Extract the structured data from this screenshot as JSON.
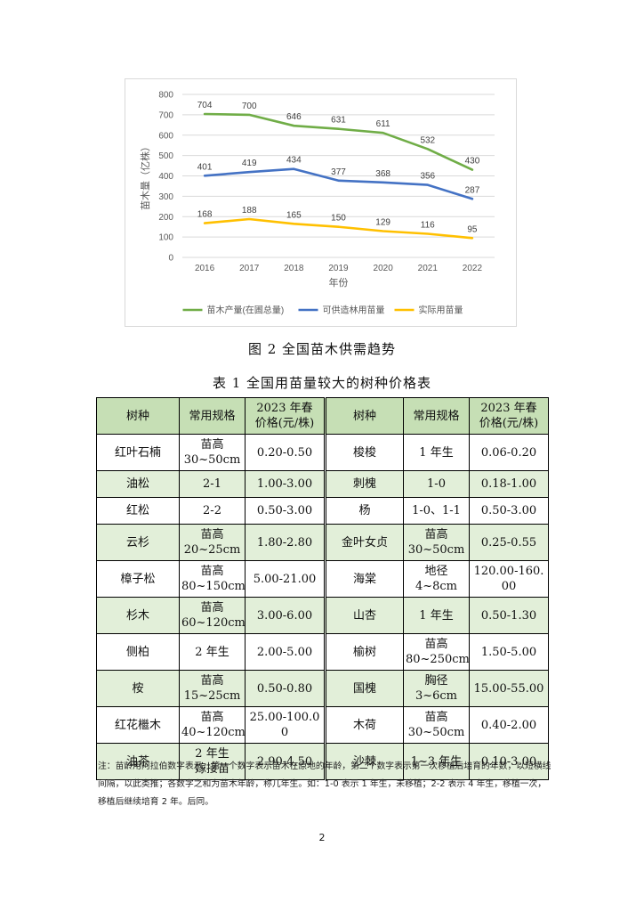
{
  "chart_data": {
    "type": "line",
    "x": [
      "2016",
      "2017",
      "2018",
      "2019",
      "2020",
      "2021",
      "2022"
    ],
    "xlabel": "年份",
    "ylabel": "苗木量（亿株）",
    "ylim": [
      0,
      800
    ],
    "yticks": [
      "0",
      "100",
      "200",
      "300",
      "400",
      "500",
      "600",
      "700",
      "800"
    ],
    "grid": true,
    "legend_position": "bottom",
    "series": [
      {
        "name": "苗木产量(在圃总量)",
        "color": "#70ad47",
        "values": [
          704,
          700,
          646,
          631,
          611,
          532,
          430
        ]
      },
      {
        "name": "可供造林用苗量",
        "color": "#4472c4",
        "values": [
          401,
          419,
          434,
          377,
          368,
          356,
          287
        ]
      },
      {
        "name": "实际用苗量",
        "color": "#ffc000",
        "values": [
          168,
          188,
          165,
          150,
          129,
          116,
          95
        ]
      }
    ]
  },
  "figure_caption": "图 2  全国苗木供需趋势",
  "table_caption": "表 1  全国用苗量较大的树种价格表",
  "table": {
    "headers": [
      "树种",
      "常用规格",
      "2023 年春价格(元/株)",
      "树种",
      "常用规格",
      "2023 年春价格(元/株)"
    ],
    "rows": [
      [
        "红叶石楠",
        "苗高 30~50cm",
        "0.20-0.50",
        "梭梭",
        "1 年生",
        "0.06-0.20"
      ],
      [
        "油松",
        "2-1",
        "1.00-3.00",
        "刺槐",
        "1-0",
        "0.18-1.00"
      ],
      [
        "红松",
        "2-2",
        "0.50-3.00",
        "杨",
        "1-0、1-1",
        "0.50-3.00"
      ],
      [
        "云杉",
        "苗高 20~25cm",
        "1.80-2.80",
        "金叶女贞",
        "苗高 30~50cm",
        "0.25-0.55"
      ],
      [
        "樟子松",
        "苗高 80~150cm",
        "5.00-21.00",
        "海棠",
        "地径 4~8cm",
        "120.00-160.00"
      ],
      [
        "杉木",
        "苗高 60~120cm",
        "3.00-6.00",
        "山杏",
        "1 年生",
        "0.50-1.30"
      ],
      [
        "侧柏",
        "2 年生",
        "2.00-5.00",
        "榆树",
        "苗高 80~250cm",
        "1.50-5.00"
      ],
      [
        "桉",
        "苗高 15~25cm",
        "0.50-0.80",
        "国槐",
        "胸径 3~6cm",
        "15.00-55.00"
      ],
      [
        "红花檵木",
        "苗高 40~120cm",
        "25.00-100.00",
        "木荷",
        "苗高 30~50cm",
        "0.40-2.00"
      ],
      [
        "油茶",
        "2 年生 嫁接苗",
        "2.90-4.50",
        "沙棘",
        "1~3 年生",
        "0.10-3.00"
      ]
    ]
  },
  "note": "注：苗龄用阿拉伯数字表示，第一个数字表示苗木在原地的年龄，第二个数字表示第一次移植后培育的年数，以短横线间隔，以此类推；各数字之和为苗木年龄，称几年生。如：1-0 表示 1 年生，未移植；2-2 表示 4 年生，移植一次，移植后继续培育 2 年。后同。",
  "page_number": "2"
}
